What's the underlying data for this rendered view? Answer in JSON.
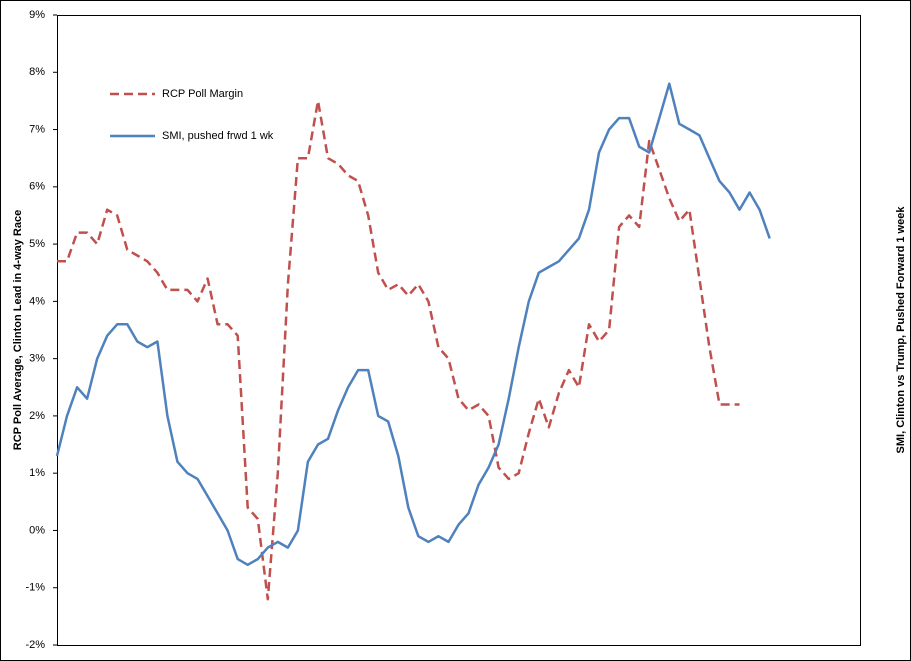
{
  "chart_data": {
    "type": "line",
    "y_label": "RCP Poll Average, Clinton Lead in 4-way Race",
    "y2_label": "SMI, Clinton vs Trump, Pushed Forward 1 week",
    "ylim": [
      -2,
      9
    ],
    "yticks": [
      {
        "value": -2,
        "label": "-2%"
      },
      {
        "value": -1,
        "label": "-1%"
      },
      {
        "value": 0,
        "label": "0%"
      },
      {
        "value": 1,
        "label": "1%"
      },
      {
        "value": 2,
        "label": "2%"
      },
      {
        "value": 3,
        "label": "3%"
      },
      {
        "value": 4,
        "label": "4%"
      },
      {
        "value": 5,
        "label": "5%"
      },
      {
        "value": 6,
        "label": "6%"
      },
      {
        "value": 7,
        "label": "7%"
      },
      {
        "value": 8,
        "label": "8%"
      },
      {
        "value": 9,
        "label": "9%"
      }
    ],
    "legend": "upper left",
    "series": [
      {
        "name": "RCP Poll Margin",
        "color": "#c0504d",
        "dashed": true,
        "values": [
          4.7,
          4.7,
          5.2,
          5.2,
          5.0,
          5.6,
          5.5,
          4.9,
          4.8,
          4.7,
          4.5,
          4.2,
          4.2,
          4.2,
          4.0,
          4.4,
          3.6,
          3.6,
          3.4,
          0.4,
          0.2,
          -1.2,
          1.0,
          4.3,
          6.5,
          6.5,
          7.5,
          6.5,
          6.4,
          6.2,
          6.1,
          5.5,
          4.5,
          4.2,
          4.3,
          4.1,
          4.3,
          4.0,
          3.2,
          3.0,
          2.3,
          2.1,
          2.2,
          2.0,
          1.1,
          0.9,
          1.0,
          1.7,
          2.3,
          1.8,
          2.4,
          2.8,
          2.5,
          3.6,
          3.3,
          3.5,
          5.3,
          5.5,
          5.3,
          6.8,
          6.3,
          5.8,
          5.4,
          5.6,
          4.4,
          3.2,
          2.2,
          2.2,
          2.2,
          null,
          null,
          null,
          null,
          null,
          null,
          null,
          null,
          null,
          null,
          null
        ]
      },
      {
        "name": "SMI, pushed frwd 1 wk",
        "color": "#4f81bd",
        "dashed": false,
        "values": [
          1.3,
          2.0,
          2.5,
          2.3,
          3.0,
          3.4,
          3.6,
          3.6,
          3.3,
          3.2,
          3.3,
          2.0,
          1.2,
          1.0,
          0.9,
          0.6,
          0.3,
          0.0,
          -0.5,
          -0.6,
          -0.5,
          -0.3,
          -0.2,
          -0.3,
          0.0,
          1.2,
          1.5,
          1.6,
          2.1,
          2.5,
          2.8,
          2.8,
          2.0,
          1.9,
          1.3,
          0.4,
          -0.1,
          -0.2,
          -0.1,
          -0.2,
          0.1,
          0.3,
          0.8,
          1.1,
          1.5,
          2.3,
          3.2,
          4.0,
          4.5,
          4.6,
          4.7,
          4.9,
          5.1,
          5.6,
          6.6,
          7.0,
          7.2,
          7.2,
          6.7,
          6.6,
          7.2,
          7.8,
          7.1,
          7.0,
          6.9,
          6.5,
          6.1,
          5.9,
          5.6,
          5.9,
          5.6,
          5.1,
          null,
          null,
          null,
          null,
          null,
          null,
          null,
          null
        ]
      }
    ]
  }
}
